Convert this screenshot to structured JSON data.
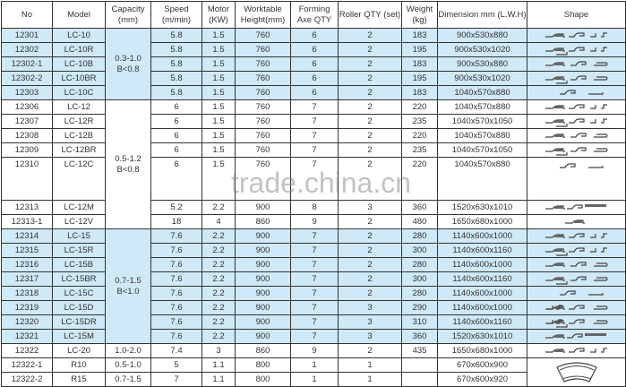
{
  "watermark": "trade.china.cn",
  "colors": {
    "highlight": "#cfe9f7",
    "border": "#333333"
  },
  "headers": [
    "No",
    "Model",
    "Capacity (mm)",
    "Speed (m/min)",
    "Motor (KW)",
    "Worktable Height(mm)",
    "Forming Axe QTY",
    "Roller QTY (set)",
    "Weight (kg)",
    "Dimension mm (L.W.H)",
    "Shape"
  ],
  "capacity_groups": [
    {
      "text": "0.3-1.0 B<0.8",
      "rows": 5,
      "highlight": true
    },
    {
      "text": "0.5-1.2 B<0.8",
      "rows": 7,
      "highlight": false
    },
    {
      "text": "0.7-1.5 B<1.0",
      "rows": 8,
      "highlight": true
    },
    {
      "text": "1.0-2.0",
      "rows": 1,
      "highlight": false
    },
    {
      "text": "0.5-1.0",
      "rows": 1,
      "highlight": false
    },
    {
      "text": "0.7-1.5",
      "rows": 1,
      "highlight": false
    }
  ],
  "rows": [
    {
      "no": "12301",
      "model": "LC-10",
      "speed": "5.8",
      "motor": "1.5",
      "height": "760",
      "axe": "6",
      "roller": "2",
      "weight": "183",
      "dim": "900x530x880",
      "shape": "four-profiles",
      "hl": true
    },
    {
      "no": "12302",
      "model": "LC-10R",
      "speed": "5.8",
      "motor": "1.5",
      "height": "760",
      "axe": "6",
      "roller": "2",
      "weight": "195",
      "dim": "900x530x1020",
      "shape": "four-profiles-r",
      "hl": true
    },
    {
      "no": "12302-1",
      "model": "LC-10B",
      "speed": "5.8",
      "motor": "1.5",
      "height": "760",
      "axe": "6",
      "roller": "2",
      "weight": "183",
      "dim": "900x530x880",
      "shape": "three-profiles",
      "hl": true
    },
    {
      "no": "12302-2",
      "model": "LC-10BR",
      "speed": "5.8",
      "motor": "1.5",
      "height": "760",
      "axe": "6",
      "roller": "2",
      "weight": "195",
      "dim": "900x530x1020",
      "shape": "three-profiles-r",
      "hl": true
    },
    {
      "no": "12303",
      "model": "LC-10C",
      "speed": "5.8",
      "motor": "1.5",
      "height": "760",
      "axe": "6",
      "roller": "2",
      "weight": "183",
      "dim": "1040x570x880",
      "shape": "two-profiles",
      "hl": true
    },
    {
      "no": "12306",
      "model": "LC-12",
      "speed": "6",
      "motor": "1.5",
      "height": "760",
      "axe": "7",
      "roller": "2",
      "weight": "220",
      "dim": "1040x570x880",
      "shape": "four-profiles",
      "hl": false
    },
    {
      "no": "12307",
      "model": "LC-12R",
      "speed": "6",
      "motor": "1.5",
      "height": "760",
      "axe": "7",
      "roller": "2",
      "weight": "235",
      "dim": "1040x570x1050",
      "shape": "four-profiles-r",
      "hl": false
    },
    {
      "no": "12308",
      "model": "LC-12B",
      "speed": "6",
      "motor": "1.5",
      "height": "760",
      "axe": "7",
      "roller": "2",
      "weight": "220",
      "dim": "1040x570x880",
      "shape": "three-profiles",
      "hl": false
    },
    {
      "no": "12309",
      "model": "LC-12BR",
      "speed": "6",
      "motor": "1.5",
      "height": "760",
      "axe": "7",
      "roller": "2",
      "weight": "235",
      "dim": "1040x570x1050",
      "shape": "three-profiles-r",
      "hl": false
    },
    {
      "no": "12310",
      "model": "LC-12C",
      "speed": "6",
      "motor": "1.5",
      "height": "760",
      "axe": "7",
      "roller": "2",
      "weight": "220",
      "dim": "1040x570x880",
      "shape": "two-profiles",
      "hl": false,
      "tall": true
    },
    {
      "no": "12313",
      "model": "LC-12M",
      "speed": "5.2",
      "motor": "2.2",
      "height": "900",
      "axe": "8",
      "roller": "3",
      "weight": "360",
      "dim": "1520x630x1010",
      "shape": "m-profiles",
      "hl": false
    },
    {
      "no": "12313-1",
      "model": "LC-12V",
      "speed": "18",
      "motor": "4",
      "height": "860",
      "axe": "9",
      "roller": "2",
      "weight": "480",
      "dim": "1650x680x1000",
      "shape": "one-profile",
      "hl": false
    },
    {
      "no": "12314",
      "model": "LC-15",
      "speed": "7.6",
      "motor": "2.2",
      "height": "900",
      "axe": "7",
      "roller": "2",
      "weight": "280",
      "dim": "1140x600x1000",
      "shape": "four-profiles",
      "hl": true
    },
    {
      "no": "12315",
      "model": "LC-15R",
      "speed": "7.6",
      "motor": "2.2",
      "height": "900",
      "axe": "7",
      "roller": "2",
      "weight": "300",
      "dim": "1140x600x1160",
      "shape": "four-profiles-r",
      "hl": true
    },
    {
      "no": "12316",
      "model": "LC-15B",
      "speed": "7.6",
      "motor": "2.2",
      "height": "900",
      "axe": "7",
      "roller": "2",
      "weight": "280",
      "dim": "1140x600x1000",
      "shape": "three-profiles",
      "hl": true
    },
    {
      "no": "12317",
      "model": "LC-15BR",
      "speed": "7.6",
      "motor": "2.2",
      "height": "900",
      "axe": "7",
      "roller": "2",
      "weight": "300",
      "dim": "1140x600x1160",
      "shape": "three-profiles-r",
      "hl": true
    },
    {
      "no": "12318",
      "model": "LC-15C",
      "speed": "7.6",
      "motor": "2.2",
      "height": "900",
      "axe": "7",
      "roller": "2",
      "weight": "280",
      "dim": "1140x600x1000",
      "shape": "two-profiles",
      "hl": true
    },
    {
      "no": "12319",
      "model": "LC-15D",
      "speed": "7.6",
      "motor": "2.2",
      "height": "900",
      "axe": "7",
      "roller": "3",
      "weight": "290",
      "dim": "1140x600x1000",
      "shape": "d-profiles",
      "hl": true
    },
    {
      "no": "12320",
      "model": "LC-15DR",
      "speed": "7.6",
      "motor": "2.2",
      "height": "900",
      "axe": "7",
      "roller": "3",
      "weight": "310",
      "dim": "1140x600x1160",
      "shape": "d-profiles-r",
      "hl": true
    },
    {
      "no": "12321",
      "model": "LC-15M",
      "speed": "7.6",
      "motor": "2.2",
      "height": "900",
      "axe": "7",
      "roller": "3",
      "weight": "360",
      "dim": "1520x630x1010",
      "shape": "m-profiles",
      "hl": true
    },
    {
      "no": "12322",
      "model": "LC-20",
      "speed": "7.4",
      "motor": "3",
      "height": "860",
      "axe": "9",
      "roller": "2",
      "weight": "435",
      "dim": "1650x680x1000",
      "shape": "four-profiles",
      "hl": false
    },
    {
      "no": "12322-1",
      "model": "R10",
      "speed": "5",
      "motor": "1.1",
      "height": "800",
      "axe": "1",
      "roller": "1",
      "weight": "",
      "dim": "670x600x900",
      "shape": "curved-duct",
      "hl": false
    },
    {
      "no": "12322-2",
      "model": "R15",
      "speed": "7",
      "motor": "1.1",
      "height": "800",
      "axe": "1",
      "roller": "1",
      "weight": "",
      "dim": "670x600x920",
      "shape": "curved-duct",
      "hl": false
    }
  ]
}
